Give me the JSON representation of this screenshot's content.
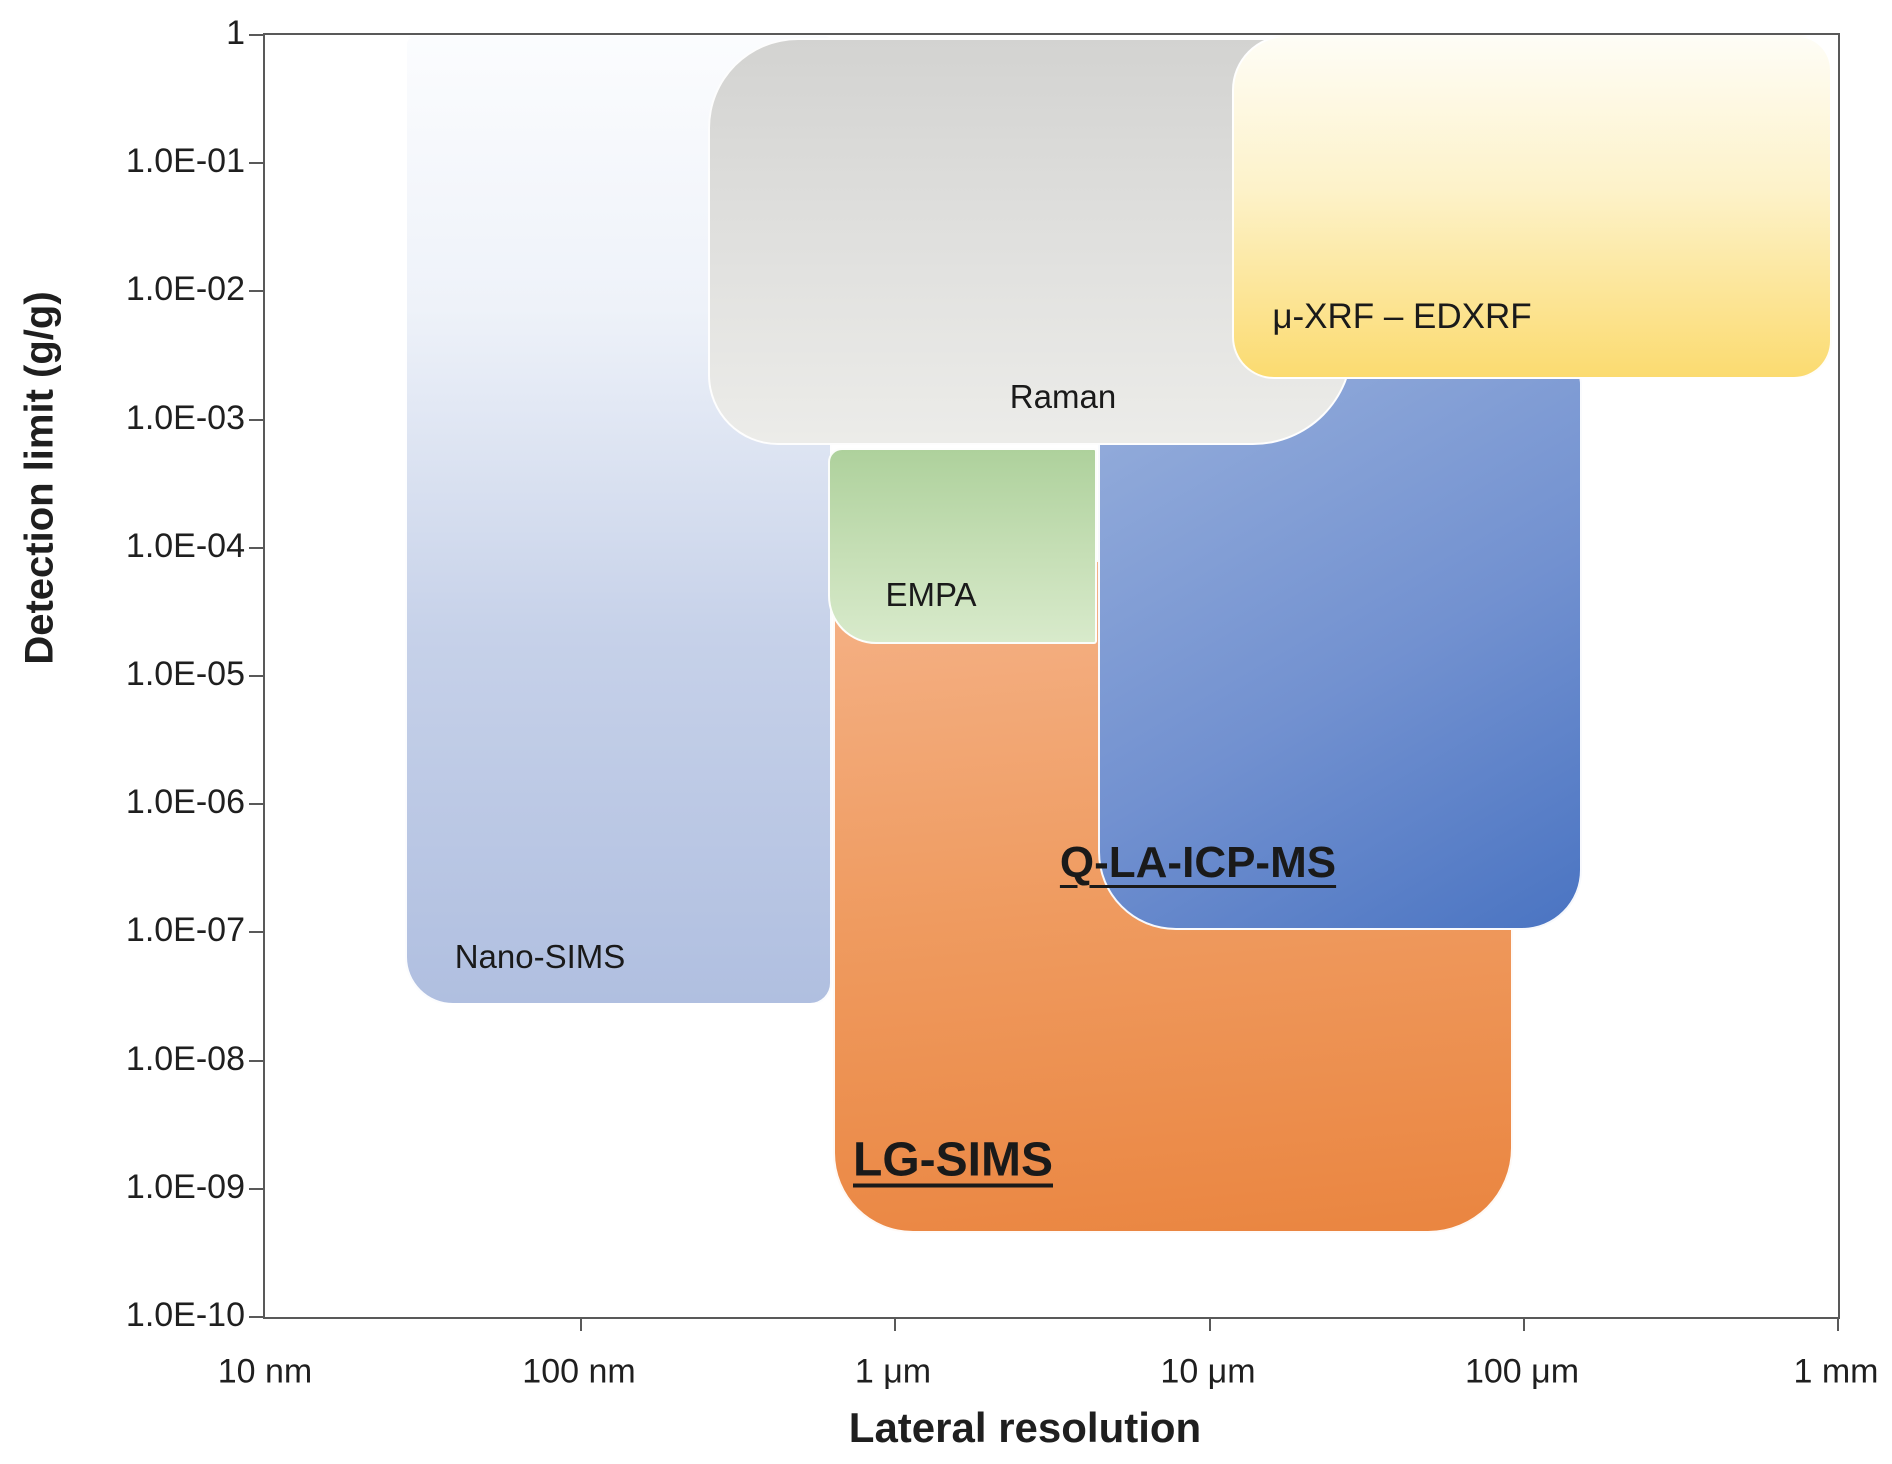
{
  "axes": {
    "y": {
      "title": "Detection limit (g/g)",
      "scale": "log",
      "ticks": [
        "1",
        "1.0E-01",
        "1.0E-02",
        "1.0E-03",
        "1.0E-04",
        "1.0E-05",
        "1.0E-06",
        "1.0E-07",
        "1.0E-08",
        "1.0E-09",
        "1.0E-10"
      ]
    },
    "x": {
      "title": "Lateral resolution",
      "scale": "log",
      "ticks": [
        "10 nm",
        "100 nm",
        "1 μm",
        "10 μm",
        "100 μm",
        "1 mm"
      ]
    }
  },
  "techniques": [
    {
      "id": "nano-sims",
      "label": "Nano-SIMS",
      "fill": {
        "angle": 180,
        "stops": [
          "#fbfcfe 0%",
          "#eef2f9 28%",
          "#c6d1e9 62%",
          "#b0bfe0 100%"
        ]
      },
      "accent": "#b0bfe0"
    },
    {
      "id": "lg-sims",
      "label": "LG-SIMS",
      "fill": {
        "angle": 175,
        "stops": [
          "#f5b389 0%",
          "#ef9b60 50%",
          "#ea8540 100%"
        ]
      },
      "accent": "#ed8c48"
    },
    {
      "id": "empa",
      "label": "EMPA",
      "fill": {
        "angle": 180,
        "stops": [
          "#aed19c 0%",
          "#c6dfb6 55%",
          "#d8eacb 100%"
        ]
      },
      "accent": "#b9d8a8"
    },
    {
      "id": "q-la-icp-ms",
      "label": "Q-LA-ICP-MS",
      "fill": {
        "angle": 150,
        "stops": [
          "#97afdc 0%",
          "#7291d0 55%",
          "#4a74c2 100%"
        ]
      },
      "accent": "#5c82ca"
    },
    {
      "id": "raman",
      "label": "Raman",
      "fill": {
        "angle": 180,
        "stops": [
          "#d3d3d1 0%",
          "#e0e0de 50%",
          "#ecece9 100%"
        ]
      },
      "accent": "#dcdcda"
    },
    {
      "id": "xrf",
      "label": "μ-XRF – EDXRF",
      "fill": {
        "angle": 180,
        "stops": [
          "#fefdf6 0%",
          "#fdf2c9 45%",
          "#fbdb70 100%"
        ]
      },
      "accent": "#fbdb70"
    }
  ],
  "frame_color": "#595959",
  "chart_data": {
    "type": "area",
    "subtype": "overlapping-log-log-regions",
    "title": "",
    "xlabel": "Lateral resolution",
    "ylabel": "Detection limit (g/g)",
    "x_scale": "log",
    "y_scale": "log",
    "x_domain": [
      "10 nm",
      "1 mm"
    ],
    "y_domain": [
      1e-10,
      1
    ],
    "x_tick_labels": [
      "10 nm",
      "100 nm",
      "1 μm",
      "10 μm",
      "100 μm",
      "1 mm"
    ],
    "y_tick_labels": [
      "1",
      "1.0E-01",
      "1.0E-02",
      "1.0E-03",
      "1.0E-04",
      "1.0E-05",
      "1.0E-06",
      "1.0E-07",
      "1.0E-08",
      "1.0E-09",
      "1.0E-10"
    ],
    "grid": false,
    "legend": false,
    "regions": [
      {
        "technique": "Nano-SIMS",
        "lateral_resolution_min": "30 nm",
        "lateral_resolution_max": "0.6 μm",
        "detection_limit_min_gg": 3e-08,
        "detection_limit_max_gg": 1
      },
      {
        "technique": "Raman",
        "lateral_resolution_min": "0.25 μm",
        "lateral_resolution_max": "30 μm",
        "detection_limit_min_gg": 0.0006,
        "detection_limit_max_gg": 1
      },
      {
        "technique": "EMPA",
        "lateral_resolution_min": "0.6 μm",
        "lateral_resolution_max": "4.5 μm",
        "detection_limit_min_gg": 2e-05,
        "detection_limit_max_gg": 0.0005
      },
      {
        "technique": "LG-SIMS",
        "lateral_resolution_min": "0.6 μm",
        "lateral_resolution_max": "90 μm",
        "detection_limit_min_gg": 5e-10,
        "detection_limit_max_gg": 2e-05
      },
      {
        "technique": "Q-LA-ICP-MS",
        "lateral_resolution_min": "4.5 μm",
        "lateral_resolution_max": "150 μm",
        "detection_limit_min_gg": 1e-07,
        "detection_limit_max_gg": 0.002
      },
      {
        "technique": "μ-XRF – EDXRF",
        "lateral_resolution_min": "12 μm",
        "lateral_resolution_max": "1 mm",
        "detection_limit_min_gg": 0.002,
        "detection_limit_max_gg": 1
      }
    ]
  }
}
